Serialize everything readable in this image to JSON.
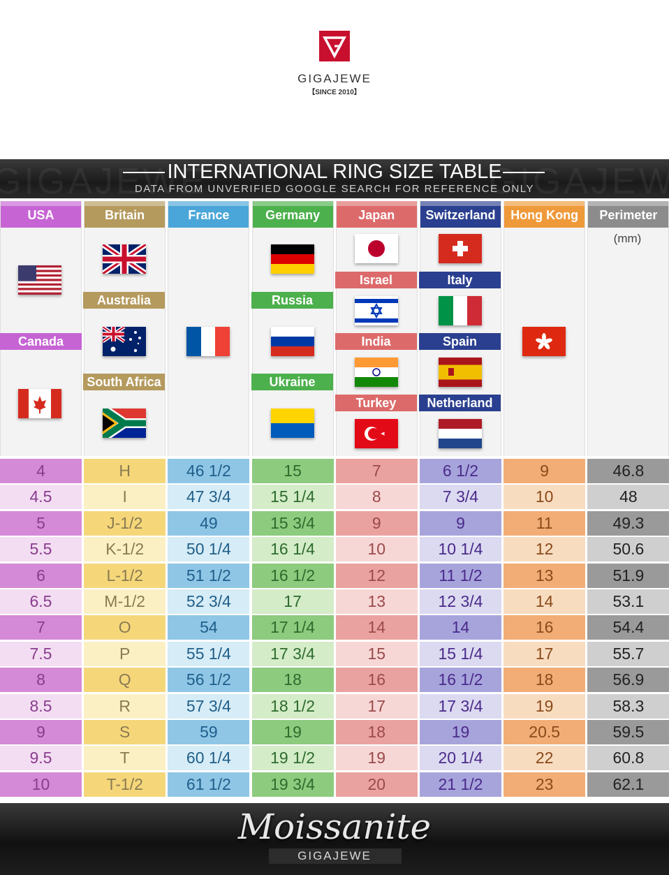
{
  "brand": {
    "name": "GIGAJEWE",
    "since": "【SINCE 2010】",
    "accent": "#c8102e"
  },
  "banner": {
    "title": "INTERNATIONAL RING SIZE TABLE",
    "subtitle": "DATA FROM UNVERIFIED GOOGLE SEARCH FOR REFERENCE ONLY",
    "ghost_left": "GIGAJEWE",
    "ghost_right": "GIGAJEWE"
  },
  "columns": [
    {
      "header": "USA",
      "color": "#c664d4"
    },
    {
      "header": "Britain",
      "color": "#b59a5e"
    },
    {
      "header": "France",
      "color": "#4aa6d8"
    },
    {
      "header": "Germany",
      "color": "#4cb04c"
    },
    {
      "header": "Japan",
      "color": "#dd6a6a"
    },
    {
      "header": "Switzerland",
      "color": "#2a3f8f"
    },
    {
      "header": "Hong Kong",
      "color": "#ef9a3a"
    },
    {
      "header": "Perimeter",
      "color": "#8c8c8c"
    }
  ],
  "perimeter_unit": "(mm)",
  "labels": {
    "canada": "Canada",
    "australia": "Australia",
    "south_africa": "South Africa",
    "russia": "Russia",
    "ukraine": "Ukraine",
    "israel": "Israel",
    "india": "India",
    "turkey": "Turkey",
    "italy": "Italy",
    "spain": "Spain",
    "netherland": "Netherland"
  },
  "table": {
    "rows": [
      [
        "4",
        "H",
        "46 1/2",
        "15",
        "7",
        "6 1/2",
        "9",
        "46.8"
      ],
      [
        "4.5",
        "I",
        "47 3/4",
        "15 1/4",
        "8",
        "7 3/4",
        "10",
        "48"
      ],
      [
        "5",
        "J-1/2",
        "49",
        "15 3/4",
        "9",
        "9",
        "11",
        "49.3"
      ],
      [
        "5.5",
        "K-1/2",
        "50 1/4",
        "16 1/4",
        "10",
        "10 1/4",
        "12",
        "50.6"
      ],
      [
        "6",
        "L-1/2",
        "51 1/2",
        "16 1/2",
        "12",
        "11 1/2",
        "13",
        "51.9"
      ],
      [
        "6.5",
        "M-1/2",
        "52 3/4",
        "17",
        "13",
        "12 3/4",
        "14",
        "53.1"
      ],
      [
        "7",
        "O",
        "54",
        "17 1/4",
        "14",
        "14",
        "16",
        "54.4"
      ],
      [
        "7.5",
        "P",
        "55 1/4",
        "17 3/4",
        "15",
        "15 1/4",
        "17",
        "55.7"
      ],
      [
        "8",
        "Q",
        "56 1/2",
        "18",
        "16",
        "16 1/2",
        "18",
        "56.9"
      ],
      [
        "8.5",
        "R",
        "57 3/4",
        "18 1/2",
        "17",
        "17 3/4",
        "19",
        "58.3"
      ],
      [
        "9",
        "S",
        "59",
        "19",
        "18",
        "19",
        "20.5",
        "59.5"
      ],
      [
        "9.5",
        "T",
        "60 1/4",
        "19 1/2",
        "19",
        "20 1/4",
        "22",
        "60.8"
      ],
      [
        "10",
        "T-1/2",
        "61 1/2",
        "19 3/4",
        "20",
        "21 1/2",
        "23",
        "62.1"
      ]
    ],
    "colors_dark": [
      "#d48ad6",
      "#f5d77a",
      "#8fc6e6",
      "#8dcb7e",
      "#eaa2a0",
      "#a7a4dc",
      "#f2ad76",
      "#9a9a9a"
    ],
    "colors_light": [
      "#f3ddf2",
      "#fbf0c4",
      "#d6ecf6",
      "#d4ecc8",
      "#f7d7d5",
      "#dcdaf1",
      "#f8dcc0",
      "#cfcfcf"
    ],
    "text_colors": [
      "#8a3c8e",
      "#8a7a52",
      "#1f5f8a",
      "#2e6b2e",
      "#9a4a4a",
      "#4a2a8a",
      "#8a4a1a",
      "#222222"
    ]
  },
  "footer": {
    "title": "Moissanite",
    "brand": "GIGAJEWE"
  }
}
